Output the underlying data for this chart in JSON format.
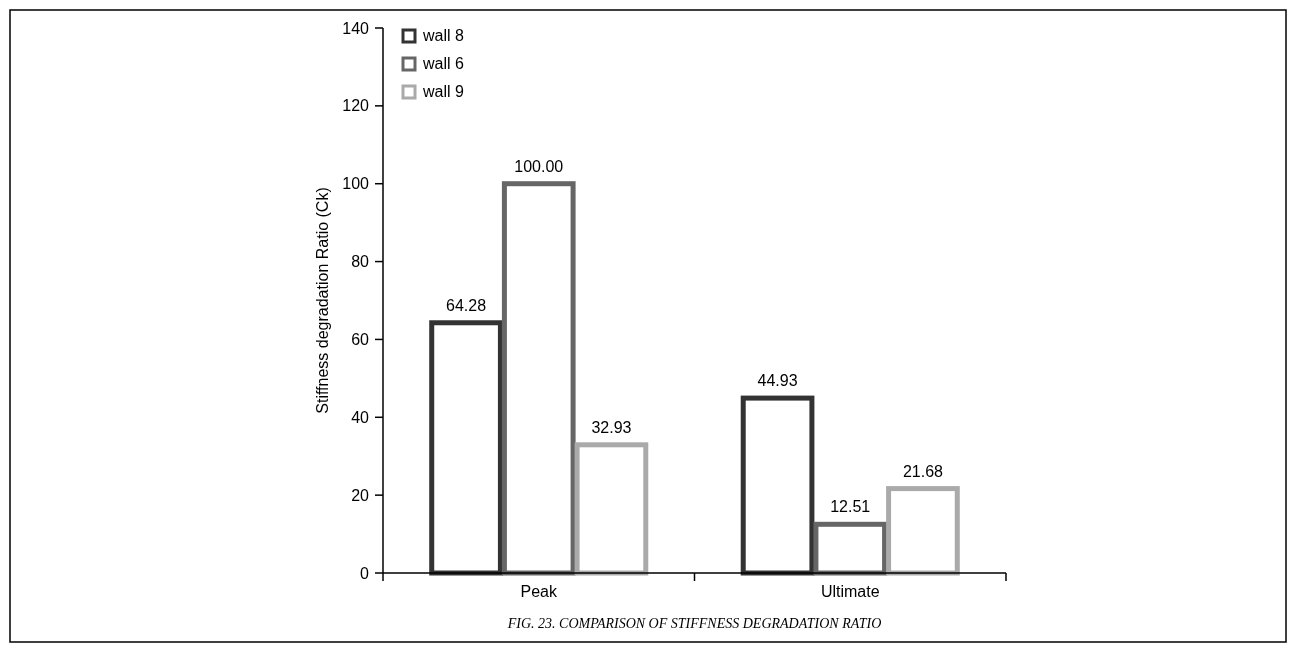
{
  "chart_data": {
    "type": "bar",
    "ylabel": "Stiffness degradation Ratio (Ck)",
    "categories": [
      "Peak",
      "Ultimate"
    ],
    "series": [
      {
        "name": "wall 8",
        "color": "#333333",
        "values": [
          64.28,
          44.93
        ],
        "value_labels": [
          "64.28",
          "44.93"
        ]
      },
      {
        "name": "wall 6",
        "color": "#666666",
        "values": [
          100.0,
          12.51
        ],
        "value_labels": [
          "100.00",
          "12.51"
        ]
      },
      {
        "name": "wall 9",
        "color": "#aaaaaa",
        "values": [
          32.93,
          21.68
        ],
        "value_labels": [
          "32.93",
          "21.68"
        ]
      }
    ],
    "ylim": [
      0,
      140
    ],
    "yticks": [
      0,
      20,
      40,
      60,
      80,
      100,
      120,
      140
    ],
    "legend": "top left",
    "grid": false,
    "annotations": [
      "FIG. 23. COMPARISON OF STIFFNESS DEGRADATION RATIO"
    ]
  }
}
